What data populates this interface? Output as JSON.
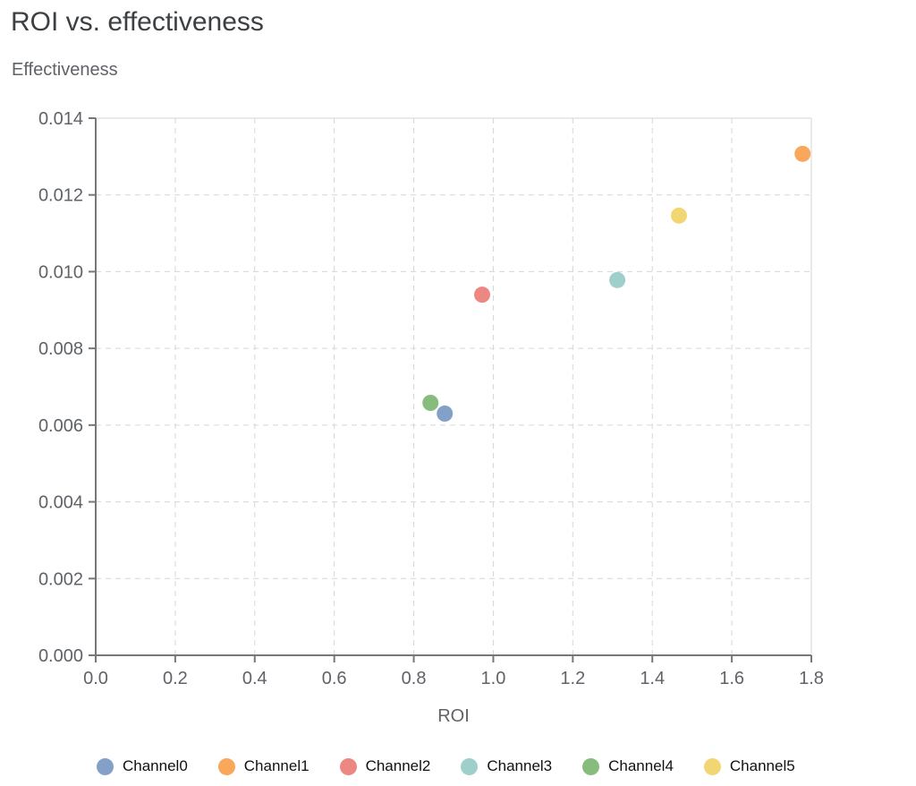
{
  "chart_data": {
    "type": "scatter",
    "title": "ROI vs. effectiveness",
    "ylabel": "Effectiveness",
    "xlabel": "ROI",
    "xlim": [
      0,
      1.8
    ],
    "ylim": [
      0,
      0.014
    ],
    "xticks": [
      "0.0",
      "0.2",
      "0.4",
      "0.6",
      "0.8",
      "1.0",
      "1.2",
      "1.4",
      "1.6",
      "1.8"
    ],
    "yticks": [
      "0.000",
      "0.002",
      "0.004",
      "0.006",
      "0.008",
      "0.010",
      "0.012",
      "0.014"
    ],
    "grid": true,
    "legend_position": "bottom",
    "series": [
      {
        "name": "Channel0",
        "x": 0.878,
        "y": 0.0063,
        "color": "#83a1c8"
      },
      {
        "name": "Channel1",
        "x": 1.778,
        "y": 0.01307,
        "color": "#f8a75b"
      },
      {
        "name": "Channel2",
        "x": 0.972,
        "y": 0.0094,
        "color": "#ec8782"
      },
      {
        "name": "Channel3",
        "x": 1.312,
        "y": 0.00978,
        "color": "#9ecfcb"
      },
      {
        "name": "Channel4",
        "x": 0.842,
        "y": 0.00658,
        "color": "#86bd7c"
      },
      {
        "name": "Channel5",
        "x": 1.467,
        "y": 0.01146,
        "color": "#f2d674"
      }
    ]
  }
}
